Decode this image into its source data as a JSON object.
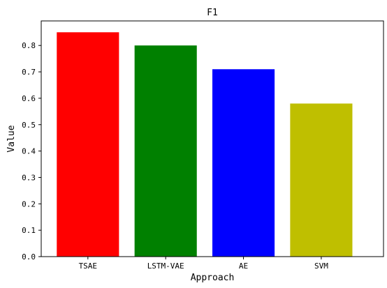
{
  "chart_data": {
    "type": "bar",
    "title": "F1",
    "xlabel": "Approach",
    "ylabel": "Value",
    "categories": [
      "TSAE",
      "LSTM-VAE",
      "AE",
      "SVM"
    ],
    "values": [
      0.85,
      0.8,
      0.71,
      0.58
    ],
    "colors": [
      "#ff0000",
      "#008000",
      "#0000ff",
      "#bfbf00"
    ],
    "ylim": [
      0,
      0.893
    ],
    "yticks": [
      "0.0",
      "0.1",
      "0.2",
      "0.3",
      "0.4",
      "0.5",
      "0.6",
      "0.7",
      "0.8"
    ],
    "grid": false,
    "legend": "none"
  }
}
